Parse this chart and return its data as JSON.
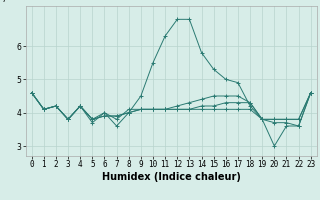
{
  "title": "",
  "xlabel": "Humidex (Indice chaleur)",
  "ylabel": "",
  "bg_color": "#d7ede8",
  "grid_color": "#b8d4ce",
  "line_color": "#2a7a72",
  "lines": [
    [
      4.6,
      4.1,
      4.2,
      3.8,
      4.2,
      3.7,
      4.0,
      3.6,
      4.0,
      4.5,
      5.5,
      6.3,
      6.8,
      6.8,
      5.8,
      5.3,
      5.0,
      4.9,
      4.2,
      3.8,
      3.7,
      3.7,
      3.6,
      4.6
    ],
    [
      4.6,
      4.1,
      4.2,
      3.8,
      4.2,
      3.8,
      4.0,
      3.8,
      4.1,
      4.1,
      4.1,
      4.1,
      4.1,
      4.1,
      4.1,
      4.1,
      4.1,
      4.1,
      4.1,
      3.8,
      3.8,
      3.8,
      3.8,
      4.6
    ],
    [
      4.6,
      4.1,
      4.2,
      3.8,
      4.2,
      3.8,
      3.9,
      3.9,
      4.0,
      4.1,
      4.1,
      4.1,
      4.1,
      4.1,
      4.2,
      4.2,
      4.3,
      4.3,
      4.3,
      3.8,
      3.8,
      3.8,
      3.8,
      4.6
    ],
    [
      4.6,
      4.1,
      4.2,
      3.8,
      4.2,
      3.8,
      3.9,
      3.9,
      4.0,
      4.1,
      4.1,
      4.1,
      4.2,
      4.3,
      4.4,
      4.5,
      4.5,
      4.5,
      4.3,
      3.8,
      3.0,
      3.6,
      3.6,
      4.6
    ]
  ],
  "xlim": [
    -0.5,
    23.5
  ],
  "ylim": [
    2.7,
    7.2
  ],
  "xticks": [
    0,
    1,
    2,
    3,
    4,
    5,
    6,
    7,
    8,
    9,
    10,
    11,
    12,
    13,
    14,
    15,
    16,
    17,
    18,
    19,
    20,
    21,
    22,
    23
  ],
  "yticks": [
    3,
    4,
    5,
    6
  ],
  "tick_fontsize": 5.5,
  "label_fontsize": 7.0,
  "label_fontweight": "bold"
}
